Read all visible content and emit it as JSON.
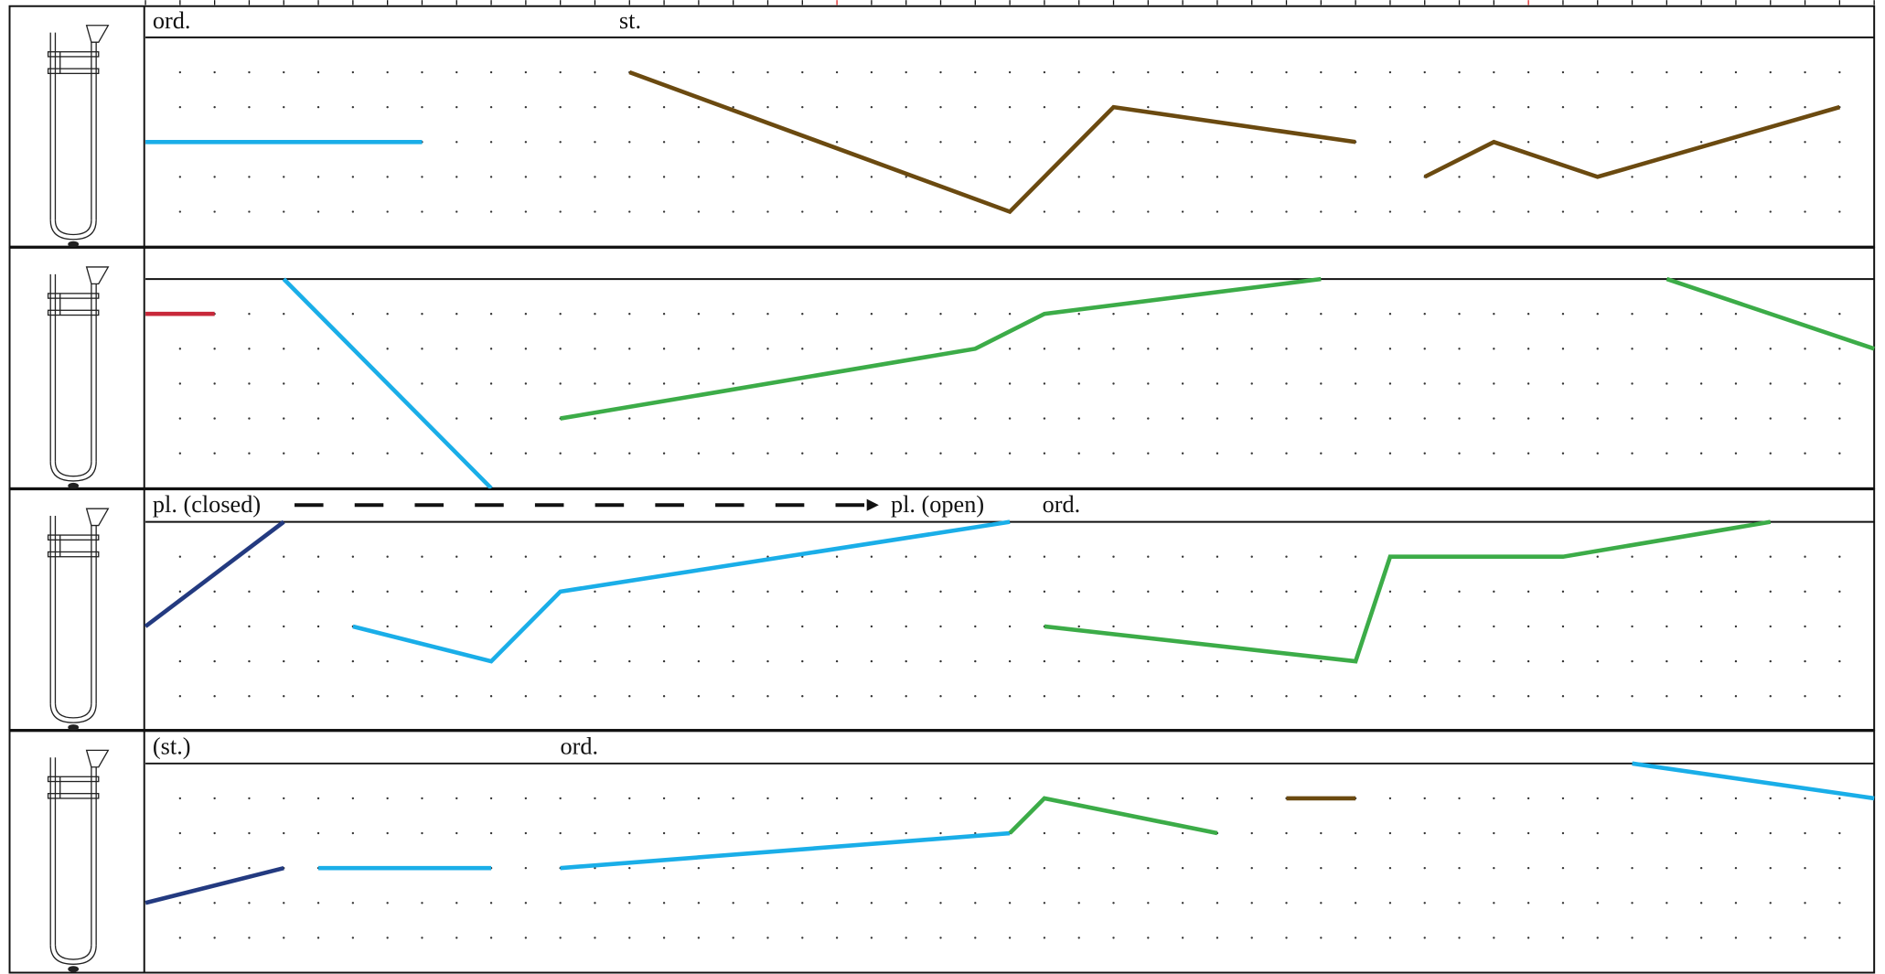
{
  "staves": [
    {
      "labels": [
        "ord.",
        "st."
      ],
      "lines": [
        {
          "color": "#1aaee8",
          "t": [
            0,
            8
          ],
          "pitch": [
            3,
            3
          ]
        },
        {
          "color": "#6b4a10",
          "t": [
            14,
            25,
            28,
            35
          ],
          "pitch": [
            5,
            1,
            4,
            3
          ]
        },
        {
          "color": "#6b4a10",
          "t": [
            37,
            39,
            42,
            49
          ],
          "pitch": [
            2,
            3,
            2,
            4
          ]
        }
      ]
    },
    {
      "labels": [],
      "lines": [
        {
          "color": "#c8283a",
          "t": [
            0,
            2
          ],
          "pitch": [
            5,
            5
          ]
        },
        {
          "color": "#1aaee8",
          "t": [
            4,
            10
          ],
          "pitch": [
            6,
            0
          ]
        },
        {
          "color": "#3cac48",
          "t": [
            12,
            24,
            26,
            34
          ],
          "pitch": [
            2,
            4,
            5,
            6
          ]
        },
        {
          "color": "#3cac48",
          "t": [
            44,
            50
          ],
          "pitch": [
            6,
            4
          ]
        }
      ]
    },
    {
      "labels": [
        "pl. (closed)",
        "pl. (open)",
        "ord."
      ],
      "lines": [
        {
          "color": "#233a80",
          "t": [
            0,
            4
          ],
          "pitch": [
            3,
            6
          ]
        },
        {
          "color": "#1aaee8",
          "t": [
            6,
            10,
            12,
            25
          ],
          "pitch": [
            3,
            2,
            4,
            6
          ]
        },
        {
          "color": "#3cac48",
          "t": [
            26,
            35,
            36,
            41,
            47
          ],
          "pitch": [
            3,
            2,
            5,
            5,
            6
          ]
        }
      ]
    },
    {
      "labels": [
        "(st.)",
        "ord."
      ],
      "lines": [
        {
          "color": "#233a80",
          "t": [
            0,
            4
          ],
          "pitch": [
            2,
            3
          ]
        },
        {
          "color": "#1aaee8",
          "t": [
            5,
            10
          ],
          "pitch": [
            3,
            3
          ]
        },
        {
          "color": "#1aaee8",
          "t": [
            12,
            25
          ],
          "pitch": [
            3,
            4
          ]
        },
        {
          "color": "#3cac48",
          "t": [
            25,
            26,
            31
          ],
          "pitch": [
            4,
            5,
            4
          ]
        },
        {
          "color": "#6b4a10",
          "t": [
            33,
            35
          ],
          "pitch": [
            5,
            5
          ]
        },
        {
          "color": "#1aaee8",
          "t": [
            43,
            50
          ],
          "pitch": [
            6,
            5
          ]
        }
      ]
    }
  ]
}
